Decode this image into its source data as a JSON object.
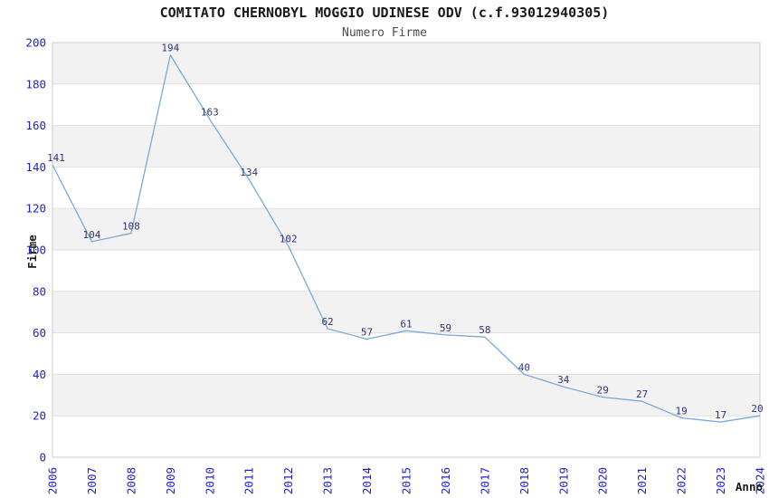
{
  "colors": {
    "tick_label": "#2222cc",
    "data_label": "#333377",
    "line": "#78aadc",
    "band_gray": "#f2f2f2",
    "band_white": "#ffffff",
    "grid": "#e0e0e0",
    "border": "#cccccc",
    "title": "#1a1a1a",
    "subtitle": "#4d4d4d",
    "axis_title": "#1a1a1a"
  },
  "chart_data": {
    "type": "line",
    "title": "COMITATO CHERNOBYL MOGGIO UDINESE ODV (c.f.93012940305)",
    "subtitle": "Numero Firme",
    "xlabel": "Anno",
    "ylabel": "Firme",
    "x": [
      2006,
      2007,
      2008,
      2009,
      2010,
      2011,
      2012,
      2013,
      2014,
      2015,
      2016,
      2017,
      2018,
      2019,
      2020,
      2021,
      2022,
      2023,
      2024
    ],
    "values": [
      141,
      104,
      108,
      194,
      163,
      134,
      102,
      62,
      57,
      61,
      59,
      58,
      40,
      34,
      29,
      27,
      19,
      17,
      20
    ],
    "ylim": [
      0,
      200
    ],
    "ytick_step": 20,
    "grid": "horizontal-bands-alternating",
    "legend": "none",
    "marker": "none"
  }
}
